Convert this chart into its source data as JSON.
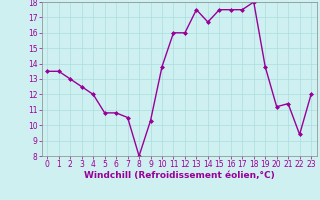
{
  "x": [
    0,
    1,
    2,
    3,
    4,
    5,
    6,
    7,
    8,
    9,
    10,
    11,
    12,
    13,
    14,
    15,
    16,
    17,
    18,
    19,
    20,
    21,
    22,
    23
  ],
  "y": [
    13.5,
    13.5,
    13.0,
    12.5,
    12.0,
    10.8,
    10.8,
    10.5,
    8.0,
    10.3,
    13.8,
    16.0,
    16.0,
    17.5,
    16.7,
    17.5,
    17.5,
    17.5,
    18.0,
    13.8,
    11.2,
    11.4,
    9.4,
    12.0
  ],
  "line_color": "#990099",
  "marker": "D",
  "markersize": 2,
  "linewidth": 1.0,
  "xlabel": "Windchill (Refroidissement éolien,°C)",
  "xlabel_fontsize": 6.5,
  "ylim": [
    8,
    18
  ],
  "xlim": [
    -0.5,
    23.5
  ],
  "yticks": [
    8,
    9,
    10,
    11,
    12,
    13,
    14,
    15,
    16,
    17,
    18
  ],
  "xticks": [
    0,
    1,
    2,
    3,
    4,
    5,
    6,
    7,
    8,
    9,
    10,
    11,
    12,
    13,
    14,
    15,
    16,
    17,
    18,
    19,
    20,
    21,
    22,
    23
  ],
  "background_color": "#cff0f0",
  "grid_color": "#aadddd",
  "tick_fontsize": 5.5,
  "spine_color": "#888888"
}
